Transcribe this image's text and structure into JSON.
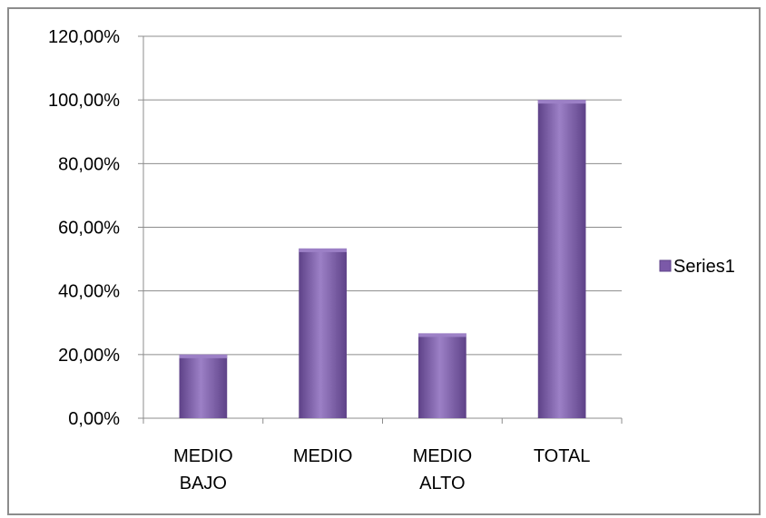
{
  "chart_data": {
    "type": "bar",
    "categories": [
      [
        "MEDIO",
        "BAJO"
      ],
      [
        "MEDIO"
      ],
      [
        "MEDIO",
        "ALTO"
      ],
      [
        "TOTAL"
      ]
    ],
    "series": [
      {
        "name": "Series1",
        "values": [
          20.0,
          53.33,
          26.67,
          100.0
        ]
      }
    ],
    "ylim": [
      0,
      120
    ],
    "yticks": [
      0,
      20,
      40,
      60,
      80,
      100,
      120
    ],
    "ytick_labels": [
      "0,00%",
      "20,00%",
      "40,00%",
      "60,00%",
      "80,00%",
      "100,00%",
      "120,00%"
    ],
    "grid": true,
    "legend_position": "right",
    "colors": {
      "bar": "#7b59a8",
      "bar_light": "#9c80c6",
      "bar_dark": "#5e4288",
      "grid": "#8c8c8c"
    }
  }
}
